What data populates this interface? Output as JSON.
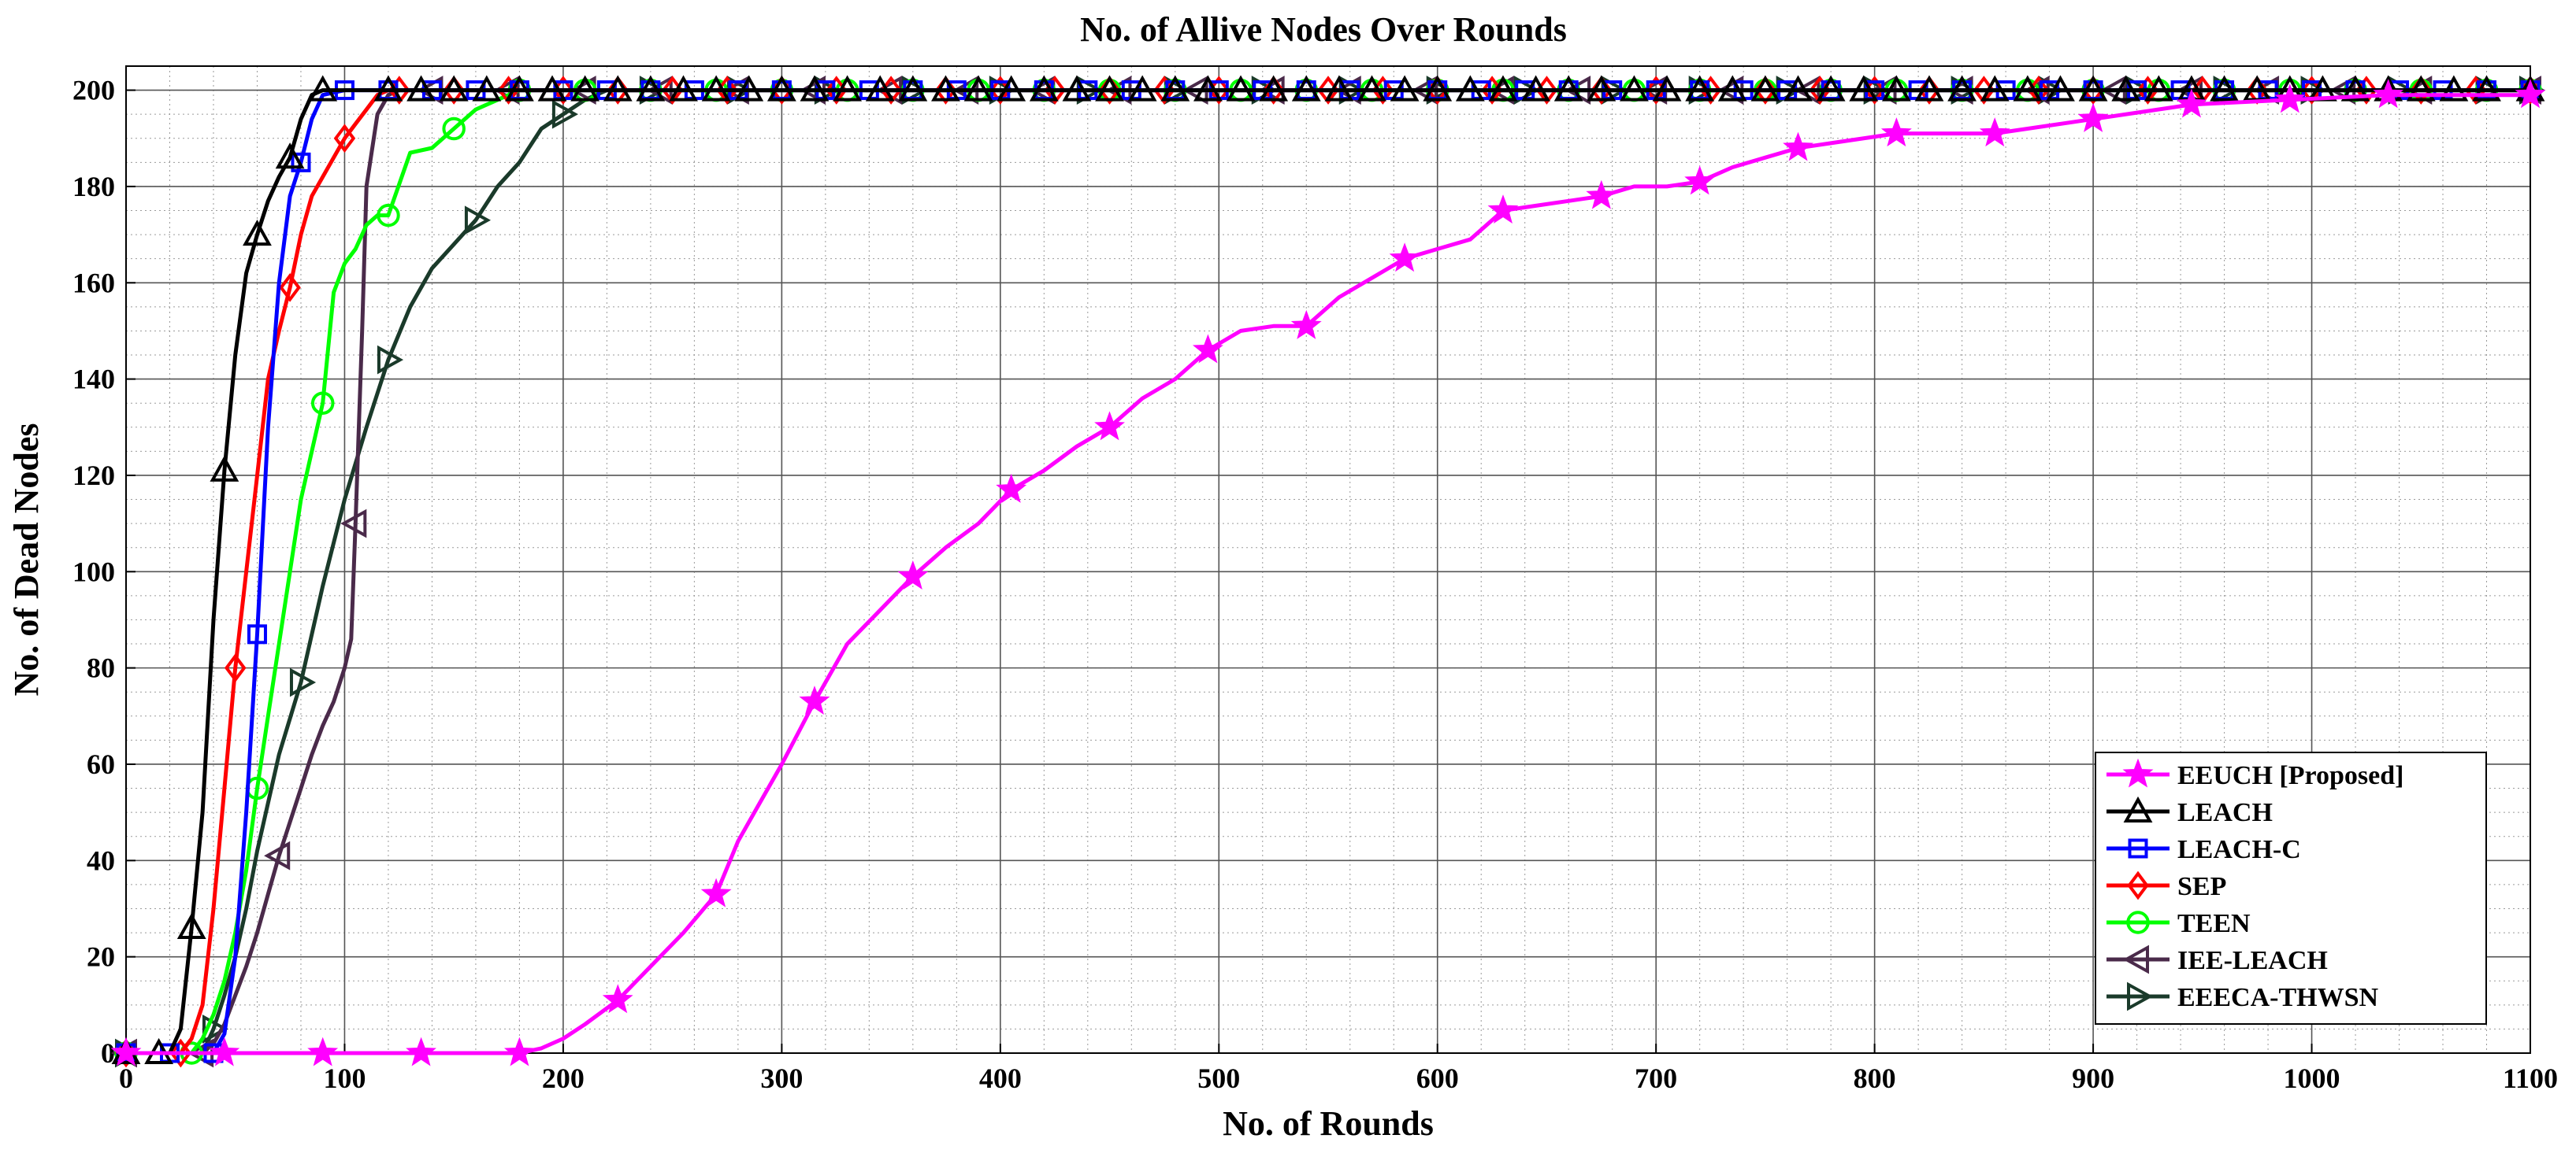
{
  "chart_data": {
    "type": "line",
    "title": "No. of Allive Nodes Over Rounds",
    "xlabel": "No. of Rounds",
    "ylabel": "No. of Dead Nodes",
    "xlim": [
      0,
      1100
    ],
    "ylim": [
      0,
      205
    ],
    "xticks": [
      0,
      100,
      200,
      300,
      400,
      500,
      600,
      700,
      800,
      900,
      1000,
      1100
    ],
    "yticks": [
      0,
      20,
      40,
      60,
      80,
      100,
      120,
      140,
      160,
      180,
      200
    ],
    "grid": true,
    "minor_grid": true,
    "legend_position": "bottom-right",
    "series": [
      {
        "name": "EEUCH [Proposed]",
        "color": "#ff00ff",
        "marker": "star",
        "x": [
          0,
          45,
          90,
          135,
          180,
          190,
          200,
          210,
          225,
          240,
          255,
          270,
          280,
          290,
          300,
          315,
          330,
          345,
          360,
          375,
          390,
          405,
          420,
          435,
          450,
          465,
          480,
          495,
          510,
          525,
          540,
          555,
          570,
          585,
          600,
          615,
          630,
          645,
          660,
          675,
          690,
          705,
          720,
          735,
          750,
          765,
          780,
          810,
          855,
          900,
          945,
          990,
          1035,
          1100
        ],
        "y": [
          0,
          0,
          0,
          0,
          0,
          1,
          3,
          6,
          11,
          18,
          25,
          33,
          44,
          52,
          60,
          73,
          85,
          92,
          99,
          105,
          110,
          117,
          121,
          126,
          130,
          136,
          140,
          146,
          150,
          151,
          151,
          157,
          161,
          165,
          167,
          169,
          175,
          176,
          177,
          178,
          180,
          180,
          181,
          184,
          186,
          188,
          189,
          191,
          191,
          194,
          197,
          198,
          199,
          199
        ],
        "markers_x": [
          0,
          45,
          90,
          135,
          180,
          225,
          270,
          315,
          360,
          405,
          450,
          495,
          540,
          585,
          630,
          675,
          720,
          765,
          810,
          855,
          900,
          945,
          990,
          1035,
          1100
        ]
      },
      {
        "name": "LEACH",
        "color": "#000000",
        "marker": "triangle-up",
        "x": [
          0,
          15,
          20,
          25,
          30,
          35,
          40,
          45,
          50,
          55,
          60,
          65,
          70,
          75,
          80,
          85,
          90,
          1100
        ],
        "y": [
          0,
          0,
          0,
          5,
          26,
          50,
          90,
          121,
          145,
          162,
          170,
          177,
          182,
          186,
          194,
          199,
          200,
          200
        ],
        "markers_x": [
          0,
          15,
          30,
          45,
          60,
          75,
          90,
          120,
          135,
          150,
          165,
          180,
          195,
          210,
          225,
          240,
          255,
          270,
          285,
          300,
          315,
          330,
          345,
          360,
          375,
          390,
          405,
          420,
          435,
          450,
          465,
          480,
          495,
          510,
          525,
          540,
          555,
          570,
          585,
          600,
          615,
          630,
          645,
          660,
          675,
          690,
          705,
          720,
          735,
          750,
          765,
          780,
          795,
          810,
          825,
          840,
          855,
          870,
          885,
          900,
          915,
          930,
          945,
          960,
          975,
          990,
          1005,
          1020,
          1035,
          1050,
          1065,
          1080,
          1100
        ]
      },
      {
        "name": "LEACH-C",
        "color": "#0000ff",
        "marker": "square",
        "x": [
          0,
          40,
          45,
          50,
          55,
          60,
          65,
          70,
          75,
          80,
          85,
          90,
          100,
          1100
        ],
        "y": [
          0,
          0,
          4,
          20,
          50,
          87,
          130,
          160,
          178,
          185,
          194,
          199,
          200,
          200
        ],
        "markers_x": [
          0,
          20,
          40,
          60,
          80,
          100,
          120,
          140,
          160,
          180,
          200,
          220,
          240,
          260,
          280,
          300,
          320,
          340,
          360,
          380,
          400,
          420,
          440,
          460,
          480,
          500,
          520,
          540,
          560,
          580,
          600,
          620,
          640,
          660,
          680,
          700,
          720,
          740,
          760,
          780,
          800,
          820,
          840,
          860,
          880,
          900,
          920,
          940,
          960,
          980,
          1000,
          1020,
          1040,
          1060,
          1080,
          1100
        ]
      },
      {
        "name": "SEP",
        "color": "#ff0000",
        "marker": "diamond",
        "x": [
          0,
          25,
          30,
          35,
          40,
          45,
          50,
          55,
          60,
          65,
          70,
          75,
          80,
          85,
          90,
          95,
          100,
          105,
          110,
          115,
          120,
          125,
          1100
        ],
        "y": [
          0,
          0,
          3,
          10,
          30,
          55,
          80,
          100,
          120,
          140,
          150,
          159,
          170,
          178,
          182,
          186,
          190,
          193,
          196,
          199,
          200,
          200,
          200
        ],
        "markers_x": [
          0,
          25,
          50,
          75,
          100,
          125,
          150,
          175,
          200,
          225,
          250,
          275,
          300,
          325,
          350,
          375,
          400,
          425,
          450,
          475,
          500,
          525,
          550,
          575,
          600,
          625,
          650,
          675,
          700,
          725,
          750,
          775,
          800,
          825,
          850,
          875,
          900,
          925,
          950,
          975,
          1000,
          1025,
          1050,
          1075,
          1100
        ]
      },
      {
        "name": "TEEN",
        "color": "#00ff00",
        "marker": "circle",
        "x": [
          0,
          30,
          35,
          40,
          45,
          50,
          55,
          60,
          65,
          70,
          75,
          80,
          85,
          90,
          95,
          100,
          105,
          110,
          115,
          120,
          130,
          140,
          150,
          160,
          170,
          180,
          1100
        ],
        "y": [
          0,
          0,
          3,
          8,
          15,
          25,
          38,
          55,
          70,
          85,
          100,
          115,
          125,
          135,
          158,
          164,
          167,
          172,
          174,
          174,
          187,
          188,
          192,
          196,
          198,
          200,
          200
        ],
        "markers_x": [
          0,
          30,
          60,
          90,
          120,
          150,
          180,
          210,
          240,
          270,
          300,
          330,
          360,
          390,
          420,
          450,
          480,
          510,
          540,
          570,
          600,
          630,
          660,
          690,
          720,
          750,
          780,
          810,
          840,
          870,
          900,
          930,
          960,
          990,
          1020,
          1050,
          1080,
          1100
        ]
      },
      {
        "name": "IEE-LEACH",
        "color": "#4a2a4a",
        "marker": "triangle-left",
        "x": [
          0,
          35,
          40,
          45,
          50,
          55,
          60,
          65,
          70,
          75,
          80,
          85,
          90,
          95,
          100,
          103,
          105,
          108,
          110,
          115,
          120,
          125,
          1100
        ],
        "y": [
          0,
          0,
          2,
          6,
          12,
          18,
          25,
          33,
          41,
          48,
          55,
          62,
          68,
          73,
          80,
          86,
          110,
          150,
          180,
          195,
          199,
          200,
          200
        ],
        "markers_x": [
          0,
          35,
          70,
          105,
          140,
          175,
          210,
          245,
          280,
          315,
          350,
          385,
          420,
          455,
          490,
          525,
          560,
          595,
          630,
          665,
          700,
          735,
          770,
          805,
          840,
          875,
          910,
          945,
          980,
          1015,
          1050,
          1100
        ]
      },
      {
        "name": "EEECA-THWSN",
        "color": "#1a3a2a",
        "marker": "triangle-right",
        "x": [
          0,
          35,
          40,
          45,
          50,
          55,
          60,
          70,
          80,
          90,
          100,
          110,
          120,
          130,
          140,
          150,
          160,
          170,
          180,
          190,
          200,
          210,
          220,
          1100
        ],
        "y": [
          0,
          0,
          5,
          12,
          20,
          30,
          42,
          62,
          77,
          97,
          115,
          130,
          144,
          155,
          163,
          168,
          173,
          180,
          185,
          192,
          195,
          198,
          200,
          200
        ],
        "markers_x": [
          0,
          40,
          80,
          120,
          160,
          200,
          240,
          280,
          320,
          360,
          400,
          440,
          480,
          520,
          560,
          600,
          640,
          680,
          720,
          760,
          800,
          840,
          880,
          920,
          960,
          1000,
          1040,
          1080,
          1100
        ]
      }
    ]
  }
}
